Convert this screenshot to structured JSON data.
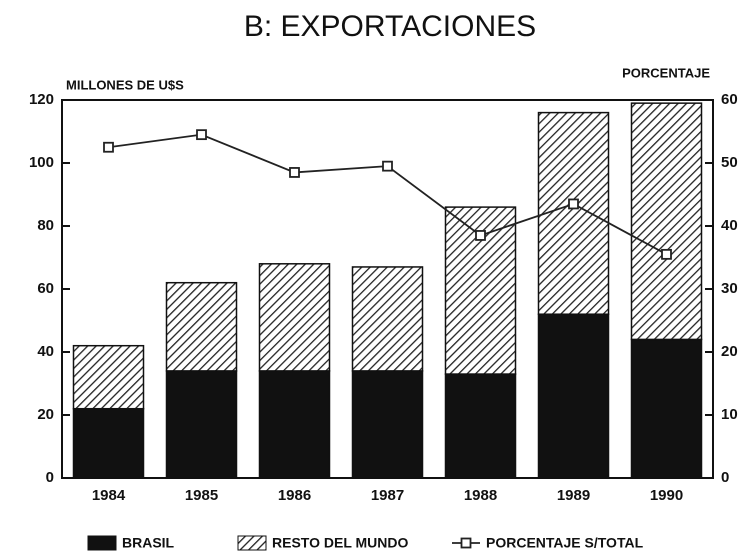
{
  "chart_data": {
    "type": "bar",
    "title": "B: EXPORTACIONES",
    "y_label": "MILLONES DE U$S",
    "y2_label": "PORCENTAJE",
    "categories": [
      "1984",
      "1985",
      "1986",
      "1987",
      "1988",
      "1989",
      "1990"
    ],
    "series": [
      {
        "name": "BRASIL",
        "color": "#111111",
        "values": [
          22,
          34,
          34,
          34,
          33,
          52,
          44
        ]
      },
      {
        "name": "RESTO DEL MUNDO",
        "color": "#222222",
        "hatch": true,
        "values": [
          20,
          28,
          34,
          33,
          53,
          64,
          75
        ]
      },
      {
        "name": "PORCENTAJE S/TOTAL",
        "color": "#222222",
        "type": "line",
        "axis": "y2",
        "values": [
          52.5,
          54.5,
          48.5,
          49.5,
          38.5,
          43.5,
          35.5
        ]
      }
    ],
    "stacked": true,
    "ylim": [
      0,
      120
    ],
    "yticks": [
      0,
      20,
      40,
      60,
      80,
      100,
      120
    ],
    "y2lim": [
      0,
      60
    ],
    "y2ticks": [
      0,
      10,
      20,
      30,
      40,
      50,
      60
    ],
    "legend": "bottom"
  }
}
